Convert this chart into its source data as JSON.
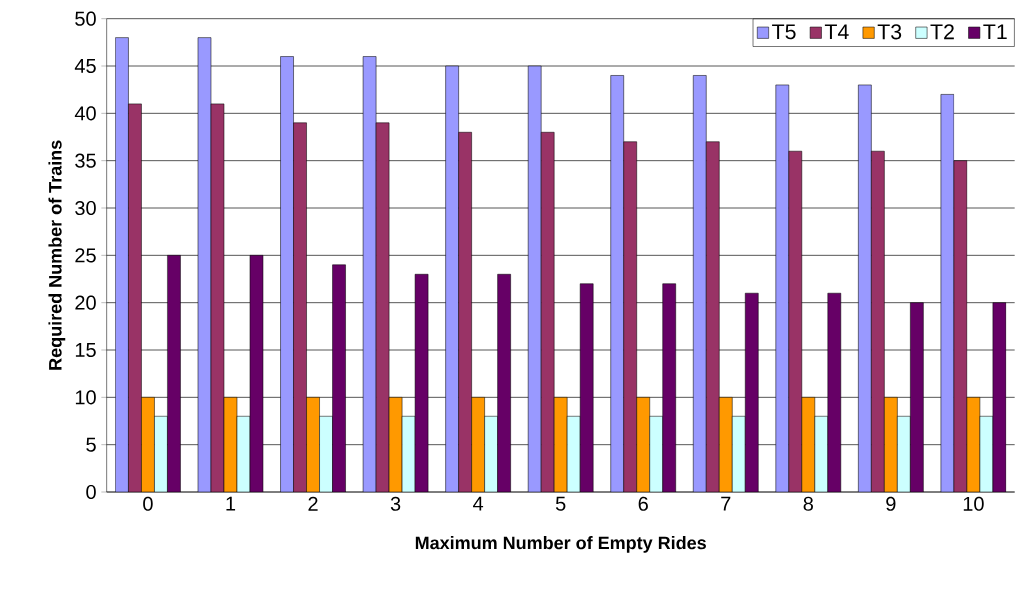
{
  "chart_data": {
    "type": "bar",
    "xlabel": "Maximum Number of Empty Rides",
    "ylabel": "Required Number of Trains",
    "categories": [
      "0",
      "1",
      "2",
      "3",
      "4",
      "5",
      "6",
      "7",
      "8",
      "9",
      "10"
    ],
    "series": [
      {
        "name": "T5",
        "color": "#9999ff",
        "values": [
          48,
          48,
          46,
          46,
          45,
          45,
          44,
          44,
          43,
          43,
          42
        ]
      },
      {
        "name": "T4",
        "color": "#993366",
        "values": [
          41,
          41,
          39,
          39,
          38,
          38,
          37,
          37,
          36,
          36,
          35
        ]
      },
      {
        "name": "T3",
        "color": "#ff9900",
        "values": [
          10,
          10,
          10,
          10,
          10,
          10,
          10,
          10,
          10,
          10,
          10
        ]
      },
      {
        "name": "T2",
        "color": "#ccffff",
        "values": [
          8,
          8,
          8,
          8,
          8,
          8,
          8,
          8,
          8,
          8,
          8
        ]
      },
      {
        "name": "T1",
        "color": "#660066",
        "values": [
          25,
          25,
          24,
          23,
          23,
          22,
          22,
          21,
          21,
          20,
          20
        ]
      }
    ],
    "ylim": [
      0,
      50
    ],
    "yticks": [
      0,
      5,
      10,
      15,
      20,
      25,
      30,
      35,
      40,
      45,
      50
    ],
    "grid": "y",
    "legend": "top right"
  }
}
